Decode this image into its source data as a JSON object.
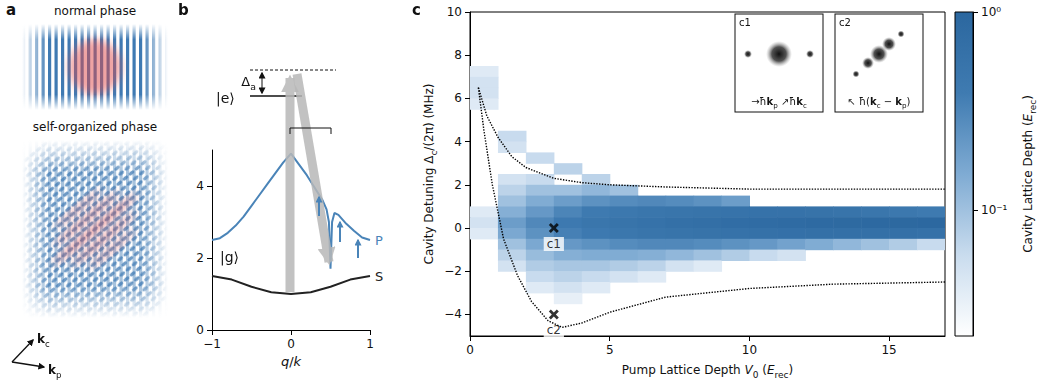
{
  "figure": {
    "a": {
      "letter": "a",
      "top_title": "normal phase",
      "bottom_title": "self-organized phase",
      "k_c": [
        {
          "text": "k",
          "format": "bold"
        },
        {
          "text": "c",
          "format": "sub"
        }
      ],
      "k_p": [
        {
          "text": "k",
          "format": "bold"
        },
        {
          "text": "p",
          "format": "sub"
        }
      ]
    },
    "b": {
      "letter": "b",
      "excited": "|e⟩",
      "ground": "|g⟩",
      "detuning": [
        {
          "text": "Δ"
        },
        {
          "text": "a",
          "format": "sub"
        }
      ]
    },
    "c": {
      "letter": "c",
      "insets": [
        {
          "label": "c1",
          "caption": [
            {
              "text": "→ħ"
            },
            {
              "text": "k",
              "format": "bold"
            },
            {
              "text": "p",
              "format": "sub"
            },
            {
              "text": " ↗ħ"
            },
            {
              "text": "k",
              "format": "bold"
            },
            {
              "text": "c",
              "format": "sub"
            }
          ]
        },
        {
          "label": "c2",
          "caption": [
            {
              "text": "↖ ħ("
            },
            {
              "text": "k",
              "format": "bold"
            },
            {
              "text": "c",
              "format": "sub"
            },
            {
              "text": " − "
            },
            {
              "text": "k",
              "format": "bold"
            },
            {
              "text": "p",
              "format": "sub"
            },
            {
              "text": ")"
            }
          ]
        }
      ]
    }
  },
  "chart_data": [
    {
      "type": "line",
      "x_label": [
        {
          "text": "q",
          "format": "italic"
        },
        {
          "text": "/"
        },
        {
          "text": "k",
          "format": "italic"
        }
      ],
      "xlim": [
        -1,
        1
      ],
      "xticks": [
        {
          "value": -1,
          "label": "−1"
        },
        0,
        1
      ],
      "ylim": [
        0,
        5
      ],
      "yticks": [
        0,
        2,
        4
      ],
      "grid": false,
      "series": [
        {
          "name": "P",
          "color": "#4a84b8",
          "x": [
            -1,
            -0.9,
            -0.8,
            -0.7,
            -0.6,
            -0.5,
            -0.4,
            -0.3,
            -0.2,
            -0.1,
            0,
            0.1,
            0.2,
            0.3,
            0.4,
            0.45,
            0.48,
            0.5,
            0.52,
            0.55,
            0.6,
            0.7,
            0.8,
            0.9,
            1
          ],
          "values": [
            2.5,
            2.55,
            2.7,
            2.9,
            3.15,
            3.45,
            3.75,
            4.05,
            4.35,
            4.65,
            4.9,
            4.6,
            4.3,
            3.95,
            3.6,
            3.35,
            3.0,
            1.7,
            3.0,
            3.25,
            3.2,
            2.95,
            2.75,
            2.57,
            2.5
          ]
        },
        {
          "name": "S",
          "color": "#222222",
          "x": [
            -1,
            -0.75,
            -0.5,
            -0.25,
            0,
            0.25,
            0.5,
            0.75,
            1
          ],
          "values": [
            1.5,
            1.4,
            1.2,
            1.05,
            1.0,
            1.05,
            1.2,
            1.4,
            1.5
          ]
        }
      ]
    },
    {
      "type": "heatmap",
      "x_label": [
        {
          "text": "Pump Lattice Depth "
        },
        {
          "text": "V",
          "format": "italic"
        },
        {
          "text": "0",
          "format": "sub"
        },
        {
          "text": " ("
        },
        {
          "text": "E",
          "format": "italic"
        },
        {
          "text": "rec",
          "format": "sub"
        },
        {
          "text": ")"
        }
      ],
      "y_label": [
        {
          "text": "Cavity Detuning Δ"
        },
        {
          "text": "c",
          "format": "sub"
        },
        {
          "text": "/(2π) (MHz)"
        }
      ],
      "xlim": [
        0,
        17
      ],
      "xticks": [
        0,
        5,
        10,
        15
      ],
      "ylim": [
        -5,
        10
      ],
      "yticks": [
        {
          "value": -4,
          "label": "−4"
        },
        {
          "value": -2,
          "label": "−2"
        },
        0,
        2,
        4,
        6,
        8,
        10
      ],
      "grid": false,
      "cells": [
        [
          0.5,
          7.25,
          0.04
        ],
        [
          0.5,
          6.75,
          0.05
        ],
        [
          0.5,
          6.25,
          0.05
        ],
        [
          0.5,
          5.75,
          0.04
        ],
        [
          0.5,
          0.75,
          0.04
        ],
        [
          0.5,
          0.25,
          0.05
        ],
        [
          0.5,
          -0.25,
          0.04
        ],
        [
          1.5,
          4.25,
          0.06
        ],
        [
          1.5,
          3.75,
          0.05
        ],
        [
          1.5,
          2.25,
          0.05
        ],
        [
          1.5,
          1.75,
          0.07
        ],
        [
          1.5,
          1.25,
          0.1
        ],
        [
          1.5,
          0.75,
          0.14
        ],
        [
          1.5,
          0.25,
          0.2
        ],
        [
          1.5,
          -0.25,
          0.16
        ],
        [
          1.5,
          -0.75,
          0.1
        ],
        [
          1.5,
          -1.25,
          0.07
        ],
        [
          1.5,
          -1.75,
          0.05
        ],
        [
          2.5,
          3.25,
          0.06
        ],
        [
          2.5,
          2.25,
          0.06
        ],
        [
          2.5,
          1.75,
          0.1
        ],
        [
          2.5,
          1.25,
          0.15
        ],
        [
          2.5,
          0.75,
          0.22
        ],
        [
          2.5,
          0.25,
          0.3
        ],
        [
          2.5,
          -0.25,
          0.25
        ],
        [
          2.5,
          -0.75,
          0.16
        ],
        [
          2.5,
          -1.25,
          0.11
        ],
        [
          2.5,
          -1.75,
          0.08
        ],
        [
          2.5,
          -2.25,
          0.06
        ],
        [
          2.5,
          -2.75,
          0.04
        ],
        [
          3.5,
          2.75,
          0.07
        ],
        [
          3.5,
          1.75,
          0.1
        ],
        [
          3.5,
          1.25,
          0.2
        ],
        [
          3.5,
          0.75,
          0.32
        ],
        [
          3.5,
          0.25,
          0.42
        ],
        [
          3.5,
          -0.25,
          0.35
        ],
        [
          3.5,
          -0.75,
          0.22
        ],
        [
          3.5,
          -1.25,
          0.14
        ],
        [
          3.5,
          -1.75,
          0.09
        ],
        [
          3.5,
          -2.25,
          0.07
        ],
        [
          3.5,
          -2.75,
          0.05
        ],
        [
          3.5,
          -3.25,
          0.035
        ],
        [
          4.5,
          2.25,
          0.07
        ],
        [
          4.5,
          1.75,
          0.12
        ],
        [
          4.5,
          1.25,
          0.25
        ],
        [
          4.5,
          0.75,
          0.4
        ],
        [
          4.5,
          0.25,
          0.5
        ],
        [
          4.5,
          -0.25,
          0.42
        ],
        [
          4.5,
          -0.75,
          0.25
        ],
        [
          4.5,
          -1.25,
          0.15
        ],
        [
          4.5,
          -1.75,
          0.09
        ],
        [
          4.5,
          -2.25,
          0.06
        ],
        [
          4.5,
          -2.75,
          0.04
        ],
        [
          5.5,
          1.75,
          0.1
        ],
        [
          5.5,
          1.25,
          0.28
        ],
        [
          5.5,
          0.75,
          0.45
        ],
        [
          5.5,
          0.25,
          0.55
        ],
        [
          5.5,
          -0.25,
          0.47
        ],
        [
          5.5,
          -0.75,
          0.28
        ],
        [
          5.5,
          -1.25,
          0.15
        ],
        [
          5.5,
          -1.75,
          0.08
        ],
        [
          5.5,
          -2.25,
          0.05
        ],
        [
          6.5,
          1.25,
          0.3
        ],
        [
          6.5,
          0.75,
          0.5
        ],
        [
          6.5,
          0.25,
          0.6
        ],
        [
          6.5,
          -0.25,
          0.52
        ],
        [
          6.5,
          -0.75,
          0.3
        ],
        [
          6.5,
          -1.25,
          0.14
        ],
        [
          6.5,
          -1.75,
          0.07
        ],
        [
          6.5,
          -2.25,
          0.04
        ],
        [
          7.5,
          1.25,
          0.28
        ],
        [
          7.5,
          0.75,
          0.52
        ],
        [
          7.5,
          0.25,
          0.65
        ],
        [
          7.5,
          -0.25,
          0.55
        ],
        [
          7.5,
          -0.75,
          0.3
        ],
        [
          7.5,
          -1.25,
          0.12
        ],
        [
          7.5,
          -1.75,
          0.05
        ],
        [
          8.5,
          1.25,
          0.25
        ],
        [
          8.5,
          0.75,
          0.55
        ],
        [
          8.5,
          0.25,
          0.7
        ],
        [
          8.5,
          -0.25,
          0.58
        ],
        [
          8.5,
          -0.75,
          0.28
        ],
        [
          8.5,
          -1.25,
          0.1
        ],
        [
          8.5,
          -1.75,
          0.04
        ],
        [
          9.5,
          1.25,
          0.2
        ],
        [
          9.5,
          0.75,
          0.57
        ],
        [
          9.5,
          0.25,
          0.74
        ],
        [
          9.5,
          -0.25,
          0.6
        ],
        [
          9.5,
          -0.75,
          0.25
        ],
        [
          9.5,
          -1.25,
          0.08
        ],
        [
          10.5,
          0.75,
          0.6
        ],
        [
          10.5,
          0.25,
          0.78
        ],
        [
          10.5,
          -0.25,
          0.62
        ],
        [
          10.5,
          -0.75,
          0.22
        ],
        [
          10.5,
          -1.25,
          0.06
        ],
        [
          11.5,
          0.75,
          0.6
        ],
        [
          11.5,
          0.25,
          0.82
        ],
        [
          11.5,
          -0.25,
          0.64
        ],
        [
          11.5,
          -0.75,
          0.18
        ],
        [
          11.5,
          -1.25,
          0.05
        ],
        [
          12.5,
          0.75,
          0.58
        ],
        [
          12.5,
          0.25,
          0.85
        ],
        [
          12.5,
          -0.25,
          0.65
        ],
        [
          12.5,
          -0.75,
          0.15
        ],
        [
          13.5,
          0.75,
          0.55
        ],
        [
          13.5,
          0.25,
          0.88
        ],
        [
          13.5,
          -0.25,
          0.66
        ],
        [
          13.5,
          -0.75,
          0.12
        ],
        [
          14.5,
          0.75,
          0.5
        ],
        [
          14.5,
          0.25,
          0.9
        ],
        [
          14.5,
          -0.25,
          0.66
        ],
        [
          14.5,
          -0.75,
          0.1
        ],
        [
          15.5,
          0.75,
          0.45
        ],
        [
          15.5,
          0.25,
          0.93
        ],
        [
          15.5,
          -0.25,
          0.65
        ],
        [
          15.5,
          -0.75,
          0.08
        ],
        [
          16.5,
          0.75,
          0.4
        ],
        [
          16.5,
          0.25,
          0.96
        ],
        [
          16.5,
          -0.25,
          0.62
        ],
        [
          16.5,
          -0.75,
          0.06
        ]
      ],
      "colorbar": {
        "label": [
          {
            "text": "Cavity Lattice Depth ("
          },
          {
            "text": "E",
            "format": "italic"
          },
          {
            "text": "rec",
            "format": "sub"
          },
          {
            "text": ")"
          }
        ],
        "range": [
          0.023,
          1
        ],
        "log": true,
        "ticks": [
          {
            "value": 0.1,
            "label": "10⁻¹"
          },
          {
            "value": 1,
            "label": "10⁰"
          }
        ],
        "colors": [
          "#ffffff",
          "#c9dcee",
          "#7fabd3",
          "#3f7bb1",
          "#2b679f"
        ]
      },
      "series": [
        {
          "type": "line",
          "line_style": "dotted",
          "color": "#000000",
          "x": [
            0.3,
            0.6,
            1,
            1.5,
            2,
            3,
            4,
            5,
            7,
            10,
            13,
            17
          ],
          "values": [
            6.5,
            5.2,
            4.2,
            3.3,
            2.8,
            2.3,
            2.1,
            2.0,
            1.9,
            1.8,
            1.8,
            1.8
          ]
        },
        {
          "type": "line",
          "line_style": "dotted",
          "color": "#000000",
          "x": [
            0.3,
            0.5,
            0.8,
            1.2,
            1.7,
            2.2,
            2.8,
            3.3,
            4,
            5,
            7,
            10,
            13,
            17
          ],
          "values": [
            6.5,
            4.5,
            2,
            -0.5,
            -2.2,
            -3.4,
            -4.3,
            -4.6,
            -4.4,
            -3.9,
            -3.2,
            -2.8,
            -2.6,
            -2.5
          ]
        },
        {
          "type": "scatter",
          "marker": "x",
          "color": "#000000",
          "x": [
            3,
            3
          ],
          "values": [
            0,
            -4
          ],
          "labels": [
            "c1",
            "c2"
          ]
        }
      ]
    }
  ]
}
